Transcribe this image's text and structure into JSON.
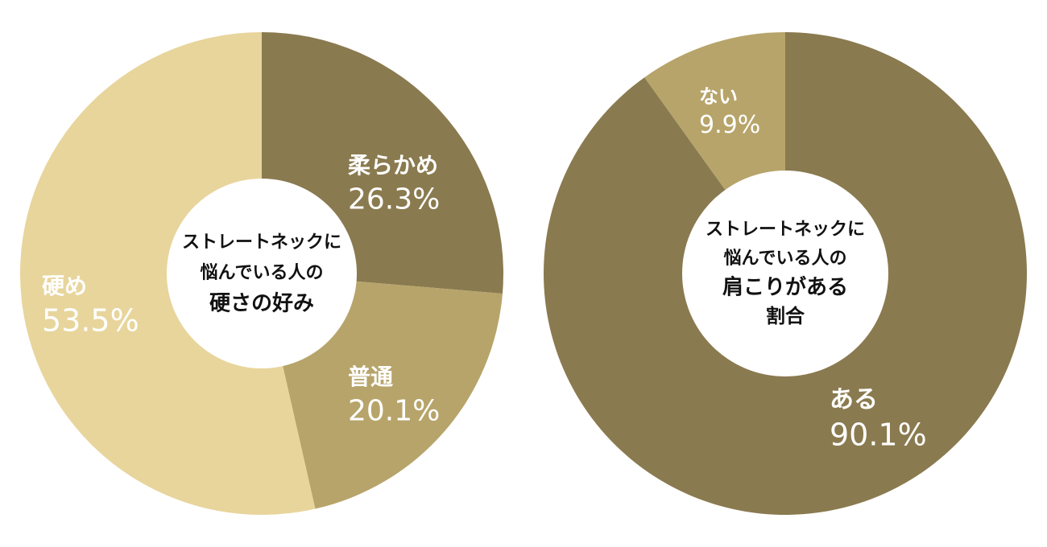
{
  "chart_data": [
    {
      "type": "pie",
      "variant": "donut",
      "center_title": [
        "ストレートネックに",
        "悩んでいる人の",
        "硬さの好み"
      ],
      "slices": [
        {
          "label": "柔らかめ",
          "value": 26.3,
          "value_label": "26.3%",
          "color": "#8a7a4f"
        },
        {
          "label": "普通",
          "value": 20.1,
          "value_label": "20.1%",
          "color": "#b7a46a"
        },
        {
          "label": "硬め",
          "value": 53.5,
          "value_label": "53.5%",
          "color": "#e8d59c"
        }
      ]
    },
    {
      "type": "pie",
      "variant": "donut",
      "center_title": [
        "ストレートネックに",
        "悩んでいる人の",
        "肩こりがある",
        "割合"
      ],
      "slices": [
        {
          "label": "ある",
          "value": 90.1,
          "value_label": "90.1%",
          "color": "#8a7a4f"
        },
        {
          "label": "ない",
          "value": 9.9,
          "value_label": "9.9%",
          "color": "#b7a46a"
        }
      ]
    }
  ]
}
